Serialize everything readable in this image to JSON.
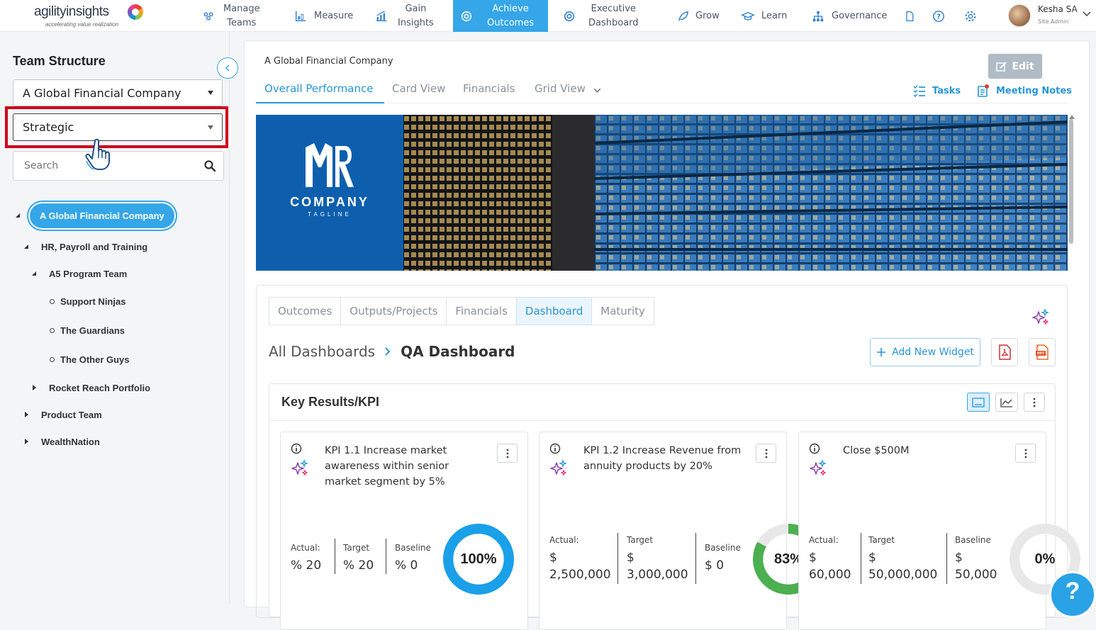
{
  "app": {
    "logo_name": "agilityinsights",
    "logo_tagline": "accelerating value realization"
  },
  "nav": {
    "items": [
      {
        "label": "Manage\nTeams",
        "icon": "teams-icon"
      },
      {
        "label": "Measure",
        "icon": "measure-icon"
      },
      {
        "label": "Gain\nInsights",
        "icon": "insights-icon"
      },
      {
        "label": "Achieve\nOutcomes",
        "icon": "target-icon",
        "active": true
      },
      {
        "label": "Executive\nDashboard",
        "icon": "dashboard-icon"
      },
      {
        "label": "Grow",
        "icon": "leaf-icon"
      },
      {
        "label": "Learn",
        "icon": "graduation-cap-icon"
      },
      {
        "label": "Governance",
        "icon": "hierarchy-icon"
      }
    ],
    "accent": "#35a6e8"
  },
  "user": {
    "name": "Kesha SA",
    "role": "Site Admin"
  },
  "sidebar": {
    "title": "Team Structure",
    "org_select": "A Global Financial Company",
    "level_select": "Strategic",
    "search_placeholder": "Search",
    "tree": {
      "root": "A Global Financial Company",
      "n1": "HR, Payroll and Training",
      "n2": "A5 Program Team",
      "n3": "Support Ninjas",
      "n4": "The Guardians",
      "n5": "The Other Guys",
      "n6": "Rocket Reach Portfolio",
      "n7": "Product Team",
      "n8": "WealthNation"
    }
  },
  "main": {
    "breadcrumb": "A Global Financial Company",
    "view_tabs": [
      "Overall Performance",
      "Card View",
      "Financials",
      "Grid View"
    ],
    "tasks_label": "Tasks",
    "notes_label": "Meeting Notes",
    "banner": {
      "company": "COMPANY",
      "tagline": "TAGLINE",
      "edit_label": "Edit"
    },
    "section_tabs": [
      "Outcomes",
      "Outputs/Projects",
      "Financials",
      "Dashboard",
      "Maturity"
    ],
    "dash_parent": "All Dashboards",
    "dash_current": "QA Dashboard",
    "add_widget_label": "Add New Widget",
    "kpi_title": "Key Results/KPI",
    "cards": [
      {
        "title": "KPI 1.1 Increase market awareness within senior market segment by 5%",
        "actual_label": "Actual:",
        "actual": "% 20",
        "target_label": "Target",
        "target": "% 20",
        "baseline_label": "Baseline",
        "baseline": "% 0",
        "percent": "100%",
        "fraction": 1.0,
        "color": "#1aa0e8"
      },
      {
        "title": "KPI 1.2 Increase Revenue from annuity products by 20%",
        "actual_label": "Actual:",
        "actual": "$\n2,500,000",
        "target_label": "Target",
        "target": "$\n3,000,000",
        "baseline_label": "Baseline",
        "baseline": "$ 0",
        "percent": "83%",
        "fraction": 0.83,
        "color": "#4caf50"
      },
      {
        "title": "Close $500M",
        "actual_label": "Actual:",
        "actual": "$\n60,000",
        "target_label": "Target",
        "target": "$\n50,000,000",
        "baseline_label": "Baseline",
        "baseline": "$\n50,000",
        "percent": "0%",
        "fraction": 0.0,
        "color": "#e5e5e5"
      }
    ]
  }
}
